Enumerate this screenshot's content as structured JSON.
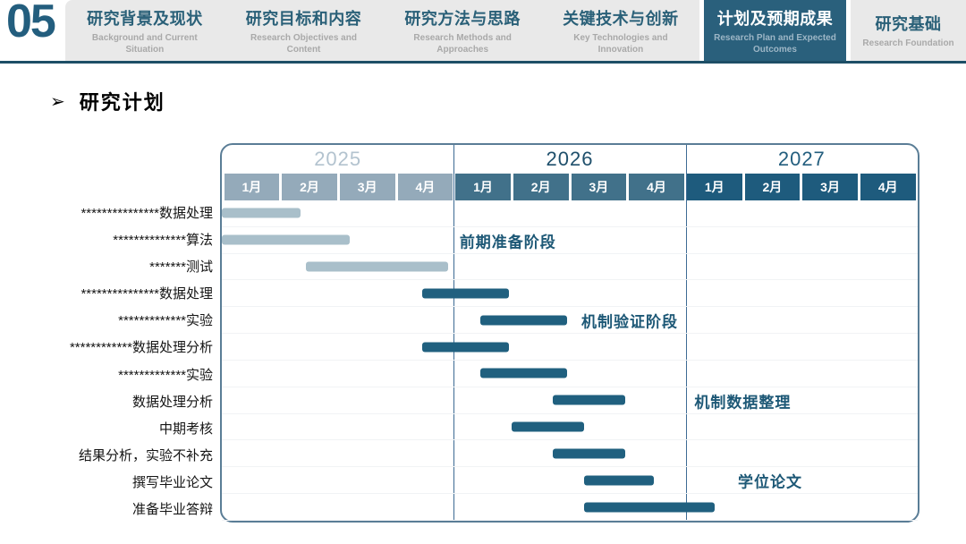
{
  "slide": {
    "number": "05",
    "tabs": [
      {
        "zh": "研究背景及现状",
        "en": "Background and Current Situation",
        "active": false
      },
      {
        "zh": "研究目标和内容",
        "en": "Research Objectives and Content",
        "active": false
      },
      {
        "zh": "研究方法与思路",
        "en": "Research Methods and Approaches",
        "active": false
      },
      {
        "zh": "关键技术与创新",
        "en": "Key Technologies and Innovation",
        "active": false
      },
      {
        "zh": "计划及预期成果",
        "en": "Research Plan and Expected Outcomes",
        "active": true
      },
      {
        "zh": "研究基础",
        "en": "Research Foundation",
        "active": false
      }
    ],
    "heading": {
      "bullet": "➢",
      "text": "研究计划"
    }
  },
  "colors": {
    "accent_dark_teal": "#20607f",
    "accent_light_bar": "#a9bfca",
    "active_tab_bg": "#2a607c",
    "tab_bg": "#e9e9e9",
    "chart_border": "#5a7d96",
    "annotation_text": "#1d5876"
  },
  "chart_data": {
    "type": "gantt",
    "title": "研究计划",
    "axis_note": "12 columns = months 1月-4月 of 2025, 2026, 2027; bar start/end measured in column units 0-12",
    "years": [
      {
        "label": "2025",
        "months": [
          "1月",
          "2月",
          "3月",
          "4月"
        ],
        "header_color": "#94aaba",
        "year_text_color": "#b3c3cf"
      },
      {
        "label": "2026",
        "months": [
          "1月",
          "2月",
          "3月",
          "4月"
        ],
        "header_color": "#41718a",
        "year_text_color": "#1e4f6b"
      },
      {
        "label": "2027",
        "months": [
          "1月",
          "2月",
          "3月",
          "4月"
        ],
        "header_color": "#1e5b7d",
        "year_text_color": "#235e7e"
      }
    ],
    "tasks": [
      {
        "label": "***************数据处理",
        "start": 0,
        "end": 1.35,
        "color": "light"
      },
      {
        "label": "**************算法",
        "start": 0,
        "end": 2.2,
        "color": "light"
      },
      {
        "label": "*******测试",
        "start": 1.45,
        "end": 3.9,
        "color": "light"
      },
      {
        "label": "***************数据处理",
        "start": 3.45,
        "end": 4.95,
        "color": "dark"
      },
      {
        "label": "*************实验",
        "start": 4.45,
        "end": 5.95,
        "color": "dark"
      },
      {
        "label": "************数据处理分析",
        "start": 3.45,
        "end": 4.95,
        "color": "dark"
      },
      {
        "label": "*************实验",
        "start": 4.45,
        "end": 5.95,
        "color": "dark"
      },
      {
        "label": "数据处理分析",
        "start": 5.7,
        "end": 6.95,
        "color": "dark"
      },
      {
        "label": "中期考核",
        "start": 5.0,
        "end": 6.25,
        "color": "dark"
      },
      {
        "label": "结果分析，实验不补充",
        "start": 5.7,
        "end": 6.95,
        "color": "dark"
      },
      {
        "label": "撰写毕业论文",
        "start": 6.25,
        "end": 7.45,
        "color": "dark"
      },
      {
        "label": "准备毕业答辩",
        "start": 6.25,
        "end": 8.5,
        "color": "dark"
      }
    ],
    "annotations": [
      {
        "text": "前期准备阶段",
        "row": 1,
        "col": 4.1
      },
      {
        "text": "机制验证阶段",
        "row": 4,
        "col": 6.2
      },
      {
        "text": "机制数据整理",
        "row": 7,
        "col": 8.15
      },
      {
        "text": "学位论文",
        "row": 10,
        "col": 8.9
      }
    ]
  }
}
